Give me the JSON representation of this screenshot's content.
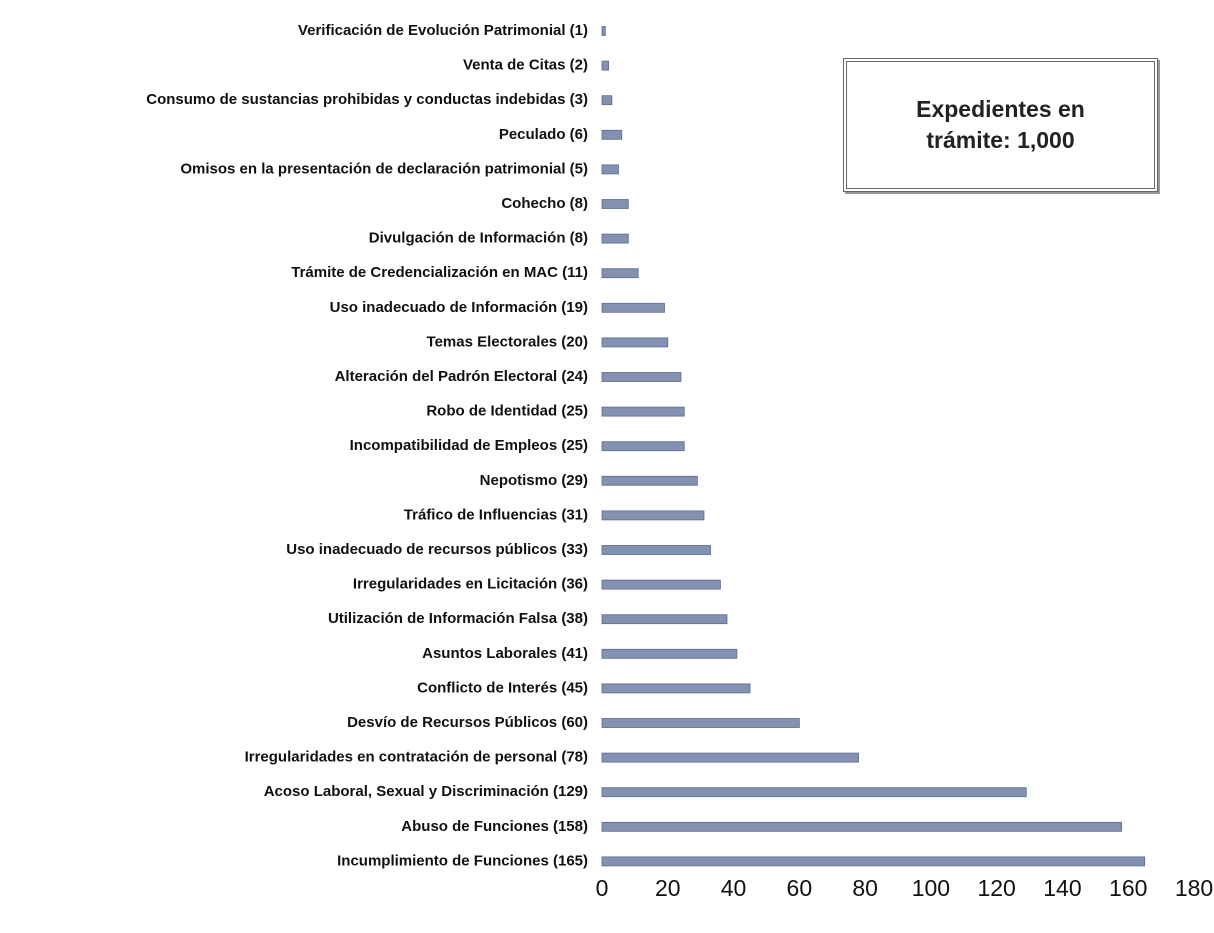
{
  "chart_data": {
    "type": "bar",
    "orientation": "horizontal",
    "categories": [
      "Verificación de Evolución Patrimonial (1)",
      "Venta de Citas (2)",
      "Consumo de sustancias prohibidas y conductas indebidas (3)",
      "Peculado (6)",
      "Omisos en la presentación de declaración patrimonial (5)",
      "Cohecho (8)",
      "Divulgación de Información (8)",
      "Trámite de Credencialización en MAC (11)",
      "Uso inadecuado de Información (19)",
      "Temas Electorales (20)",
      "Alteración del Padrón Electoral (24)",
      "Robo de Identidad (25)",
      "Incompatibilidad de Empleos (25)",
      "Nepotismo (29)",
      "Tráfico de Influencias (31)",
      "Uso inadecuado de recursos públicos (33)",
      "Irregularidades en Licitación (36)",
      "Utilización de Información Falsa (38)",
      "Asuntos Laborales (41)",
      "Conflicto de Interés (45)",
      "Desvío de Recursos Públicos (60)",
      "Irregularidades en contratación de personal (78)",
      "Acoso Laboral, Sexual y Discriminación (129)",
      "Abuso de Funciones (158)",
      "Incumplimiento de Funciones (165)"
    ],
    "values": [
      1,
      2,
      3,
      6,
      5,
      8,
      8,
      11,
      19,
      20,
      24,
      25,
      25,
      29,
      31,
      33,
      36,
      38,
      41,
      45,
      60,
      78,
      129,
      158,
      165
    ],
    "color": "#8391b3",
    "xlim": [
      0,
      180
    ],
    "xticks": [
      0,
      20,
      40,
      60,
      80,
      100,
      120,
      140,
      160,
      180
    ],
    "annotation": "Expedientes en trámite: 1,000"
  }
}
